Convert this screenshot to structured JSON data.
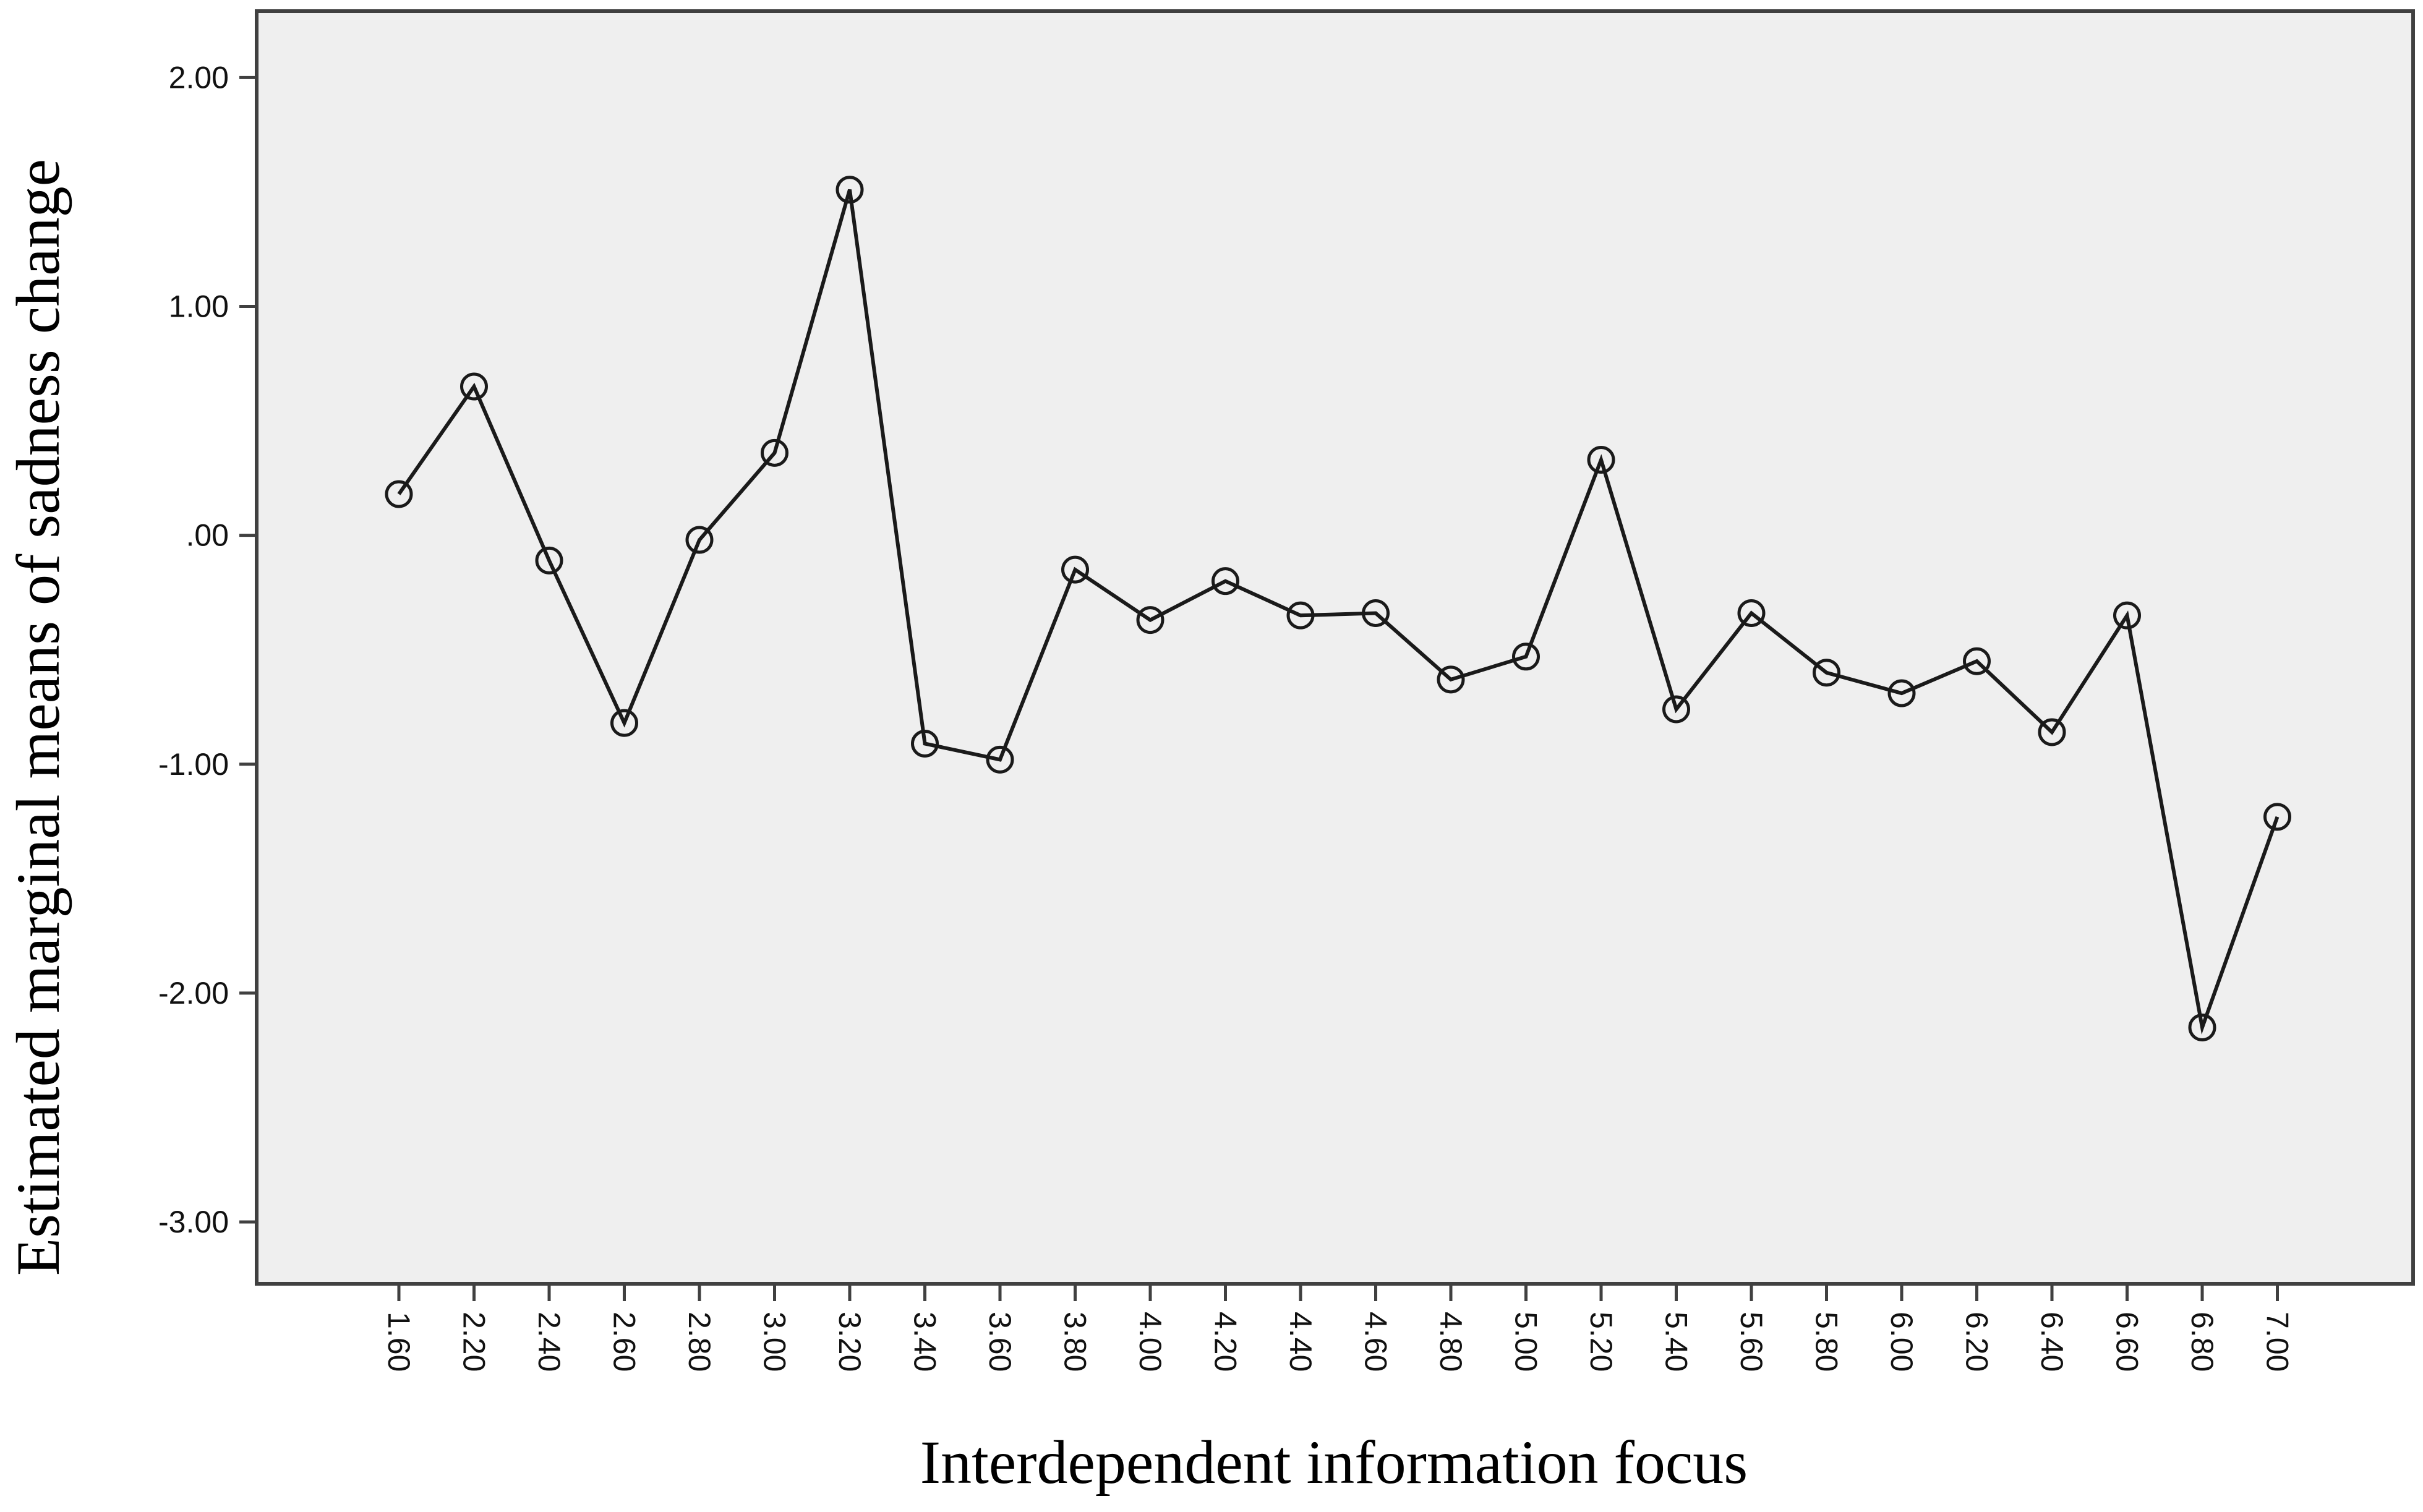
{
  "chart_data": {
    "type": "line",
    "title": "",
    "xlabel": "Interdependent information focus",
    "ylabel": "Estimated marginal means of sadness change",
    "categories": [
      "1.60",
      "2.20",
      "2.40",
      "2.60",
      "2.80",
      "3.00",
      "3.20",
      "3.40",
      "3.60",
      "3.80",
      "4.00",
      "4.20",
      "4.40",
      "4.60",
      "4.80",
      "5.00",
      "5.20",
      "5.40",
      "5.60",
      "5.80",
      "6.00",
      "6.20",
      "6.40",
      "6.60",
      "6.80",
      "7.00"
    ],
    "series": [
      {
        "values": [
          0.18,
          0.65,
          -0.11,
          -0.82,
          -0.02,
          0.36,
          1.51,
          -0.91,
          -0.98,
          -0.15,
          -0.37,
          -0.2,
          -0.35,
          -0.34,
          -0.63,
          -0.53,
          0.33,
          -0.76,
          -0.34,
          -0.6,
          -0.69,
          -0.55,
          -0.86,
          -0.35,
          -2.15,
          -1.23
        ]
      }
    ],
    "ylim": [
      -3.27,
      2.29
    ],
    "yticks": [
      2.0,
      1.0,
      0.0,
      -1.0,
      -2.0,
      -3.0
    ],
    "ytick_labels": [
      "2.00",
      "1.00",
      ".00",
      "-1.00",
      "-2.00",
      "-3.00"
    ],
    "grid": false,
    "legend": "none",
    "plot_background": "#efefef",
    "line_color": "#1a1a1a",
    "marker": "open-circle"
  }
}
